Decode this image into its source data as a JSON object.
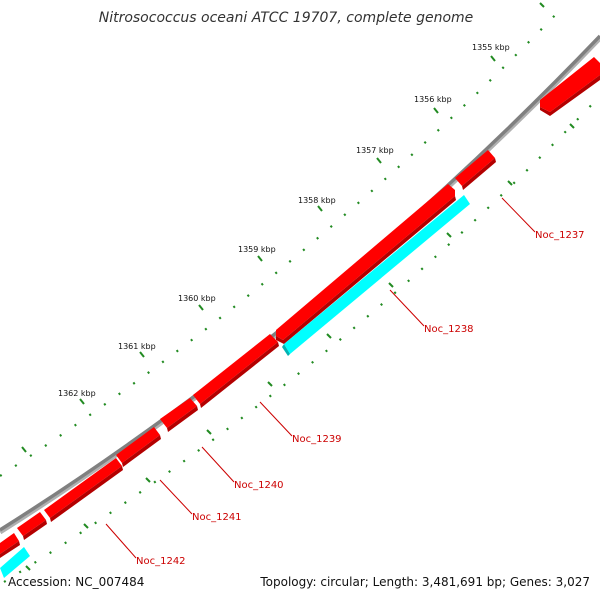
{
  "title": "Nitrosococcus oceani ATCC 19707, complete genome",
  "accession": "Accession: NC_007484",
  "summary": "Topology: circular; Length: 3,481,691 bp; Genes: 3,027",
  "ticks": [
    "1355 kbp",
    "1356 kbp",
    "1357 kbp",
    "1358 kbp",
    "1359 kbp",
    "1360 kbp",
    "1361 kbp",
    "1362 kbp"
  ],
  "genes": [
    "Noc_1237",
    "Noc_1238",
    "Noc_1239",
    "Noc_1240",
    "Noc_1241",
    "Noc_1242"
  ],
  "colors": {
    "backbone": "#808080",
    "cds": "#ff0000",
    "rna": "#00ffff",
    "tick": "#228b22",
    "label": "#cc0000"
  }
}
